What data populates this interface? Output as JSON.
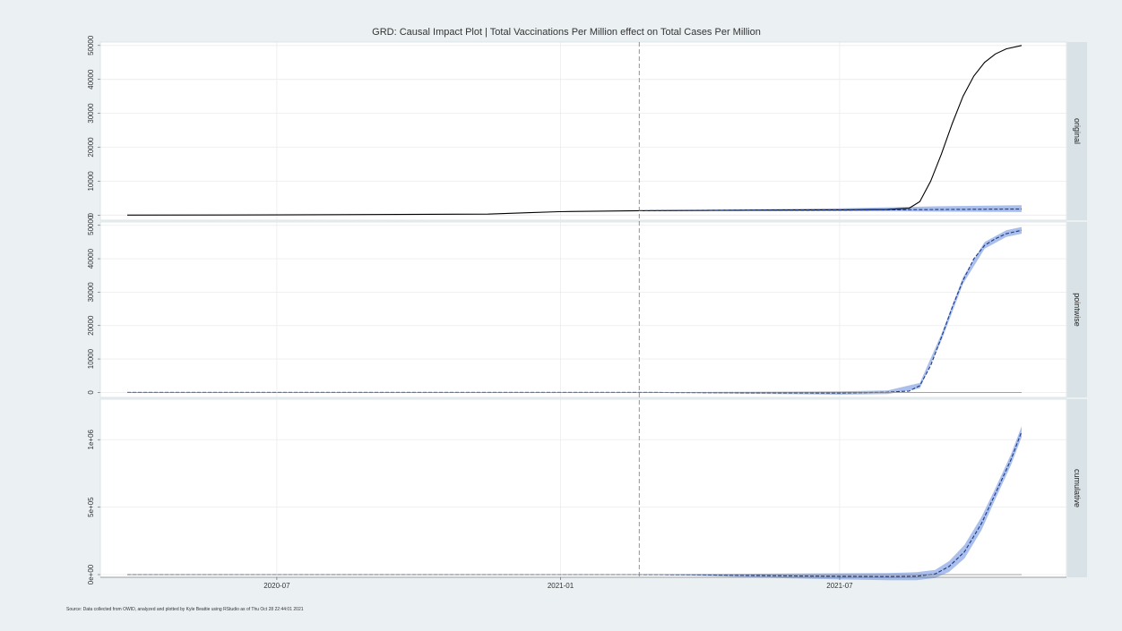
{
  "chart_data": {
    "type": "line",
    "title": "GRD: Causal Impact Plot | Total Vaccinations Per Million effect on Total Cases Per Million",
    "caption": "Source: Data collected from OWID, analyzed and plotted by Kyle Beattie using RStudio as of Thu Oct 28 22:44:01 2021",
    "xlabel": "",
    "ylabel": "",
    "x_range": [
      "2020-03-26",
      "2021-10-27"
    ],
    "x_ticks": [
      {
        "date": "2020-07-01",
        "label": "2020-07"
      },
      {
        "date": "2021-01-01",
        "label": "2021-01"
      },
      {
        "date": "2021-07-01",
        "label": "2021-07"
      }
    ],
    "intervention_date": "2021-02-21",
    "panels": [
      {
        "name": "original",
        "strip_label": "original",
        "ylim": [
          -1500,
          51000
        ],
        "y_ticks": [
          0,
          10000,
          20000,
          30000,
          40000,
          50000
        ],
        "y_tick_labels": [
          "0",
          "10000",
          "20000",
          "30000",
          "40000",
          "50000"
        ],
        "series": [
          {
            "role": "observed",
            "style": "solid",
            "color": "#000000",
            "x": [
              "2020-03-26",
              "2020-07-01",
              "2020-11-15",
              "2020-12-10",
              "2020-12-31",
              "2021-02-21",
              "2021-05-01",
              "2021-07-01",
              "2021-08-01",
              "2021-08-15",
              "2021-08-22",
              "2021-08-29",
              "2021-09-05",
              "2021-09-12",
              "2021-09-19",
              "2021-09-26",
              "2021-10-03",
              "2021-10-10",
              "2021-10-17",
              "2021-10-27"
            ],
            "y": [
              0,
              50,
              300,
              700,
              1000,
              1300,
              1450,
              1550,
              1700,
              2000,
              4000,
              10000,
              18000,
              27000,
              35000,
              41000,
              45000,
              47500,
              49000,
              50000
            ]
          },
          {
            "role": "predicted",
            "style": "dashed",
            "color": "#1a3a8a",
            "x": [
              "2021-02-21",
              "2021-05-01",
              "2021-07-01",
              "2021-08-01",
              "2021-09-01",
              "2021-10-27"
            ],
            "y": [
              1300,
              1400,
              1480,
              1550,
              1650,
              1800
            ]
          }
        ],
        "band": {
          "color": "#8fa9e6",
          "x": [
            "2021-02-21",
            "2021-05-01",
            "2021-07-01",
            "2021-08-01",
            "2021-09-01",
            "2021-10-27"
          ],
          "lower": [
            1250,
            1200,
            1150,
            1100,
            1000,
            900
          ],
          "upper": [
            1350,
            1700,
            2000,
            2300,
            2600,
            2900
          ]
        }
      },
      {
        "name": "pointwise",
        "strip_label": "pointwise",
        "ylim": [
          -1500,
          51000
        ],
        "y_ticks": [
          0,
          10000,
          20000,
          30000,
          40000,
          50000
        ],
        "y_tick_labels": [
          "0",
          "10000",
          "20000",
          "30000",
          "40000",
          "50000"
        ],
        "series": [
          {
            "role": "effect",
            "style": "dashed",
            "color": "#1a3a8a",
            "x": [
              "2020-03-26",
              "2020-07-01",
              "2020-12-31",
              "2021-02-21",
              "2021-05-01",
              "2021-07-01",
              "2021-08-01",
              "2021-08-15",
              "2021-08-22",
              "2021-08-29",
              "2021-09-05",
              "2021-09-12",
              "2021-09-19",
              "2021-09-26",
              "2021-10-03",
              "2021-10-10",
              "2021-10-17",
              "2021-10-27"
            ],
            "y": [
              0,
              0,
              0,
              0,
              -100,
              -200,
              50,
              400,
              2000,
              8000,
              16500,
              25500,
              33500,
              40000,
              44000,
              46000,
              47500,
              48500
            ]
          },
          {
            "role": "zero-line",
            "style": "solid",
            "color": "#888888",
            "x": [
              "2020-03-26",
              "2021-10-27"
            ],
            "y": [
              0,
              0
            ]
          }
        ],
        "band": {
          "color": "#8fa9e6",
          "x": [
            "2021-02-21",
            "2021-05-01",
            "2021-07-01",
            "2021-08-01",
            "2021-08-22",
            "2021-09-05",
            "2021-09-19",
            "2021-10-03",
            "2021-10-17",
            "2021-10-27"
          ],
          "lower": [
            -50,
            -400,
            -700,
            -500,
            1200,
            15500,
            32500,
            43000,
            46500,
            47500
          ],
          "upper": [
            50,
            200,
            300,
            600,
            2800,
            17500,
            34500,
            45000,
            48500,
            49500
          ]
        }
      },
      {
        "name": "cumulative",
        "strip_label": "cumulative",
        "ylim": [
          -20000,
          1300000
        ],
        "y_ticks": [
          0,
          500000,
          1000000
        ],
        "y_tick_labels": [
          "0e+00",
          "5e+05",
          "1e+06"
        ],
        "series": [
          {
            "role": "cumulative-effect",
            "style": "dashed",
            "color": "#1a3a8a",
            "x": [
              "2020-03-26",
              "2021-02-21",
              "2021-04-01",
              "2021-05-01",
              "2021-06-01",
              "2021-07-01",
              "2021-08-01",
              "2021-08-20",
              "2021-09-01",
              "2021-09-10",
              "2021-09-20",
              "2021-10-01",
              "2021-10-10",
              "2021-10-20",
              "2021-10-27"
            ],
            "y": [
              0,
              0,
              -2000,
              -6000,
              -10000,
              -13000,
              -15000,
              -12000,
              5000,
              60000,
              170000,
              380000,
              600000,
              850000,
              1060000
            ]
          },
          {
            "role": "zero-line",
            "style": "solid",
            "color": "#888888",
            "x": [
              "2020-03-26",
              "2021-10-27"
            ],
            "y": [
              0,
              0
            ]
          }
        ],
        "band": {
          "color": "#8fa9e6",
          "x": [
            "2021-02-21",
            "2021-04-01",
            "2021-05-01",
            "2021-06-01",
            "2021-07-01",
            "2021-08-01",
            "2021-08-20",
            "2021-09-01",
            "2021-09-10",
            "2021-09-20",
            "2021-10-01",
            "2021-10-10",
            "2021-10-20",
            "2021-10-27"
          ],
          "lower": [
            -1000,
            -8000,
            -18000,
            -28000,
            -36000,
            -42000,
            -42000,
            -25000,
            20000,
            120000,
            330000,
            560000,
            810000,
            1020000
          ],
          "upper": [
            1000,
            4000,
            6000,
            8000,
            10000,
            12000,
            18000,
            35000,
            100000,
            220000,
            430000,
            640000,
            890000,
            1100000
          ]
        }
      }
    ]
  }
}
